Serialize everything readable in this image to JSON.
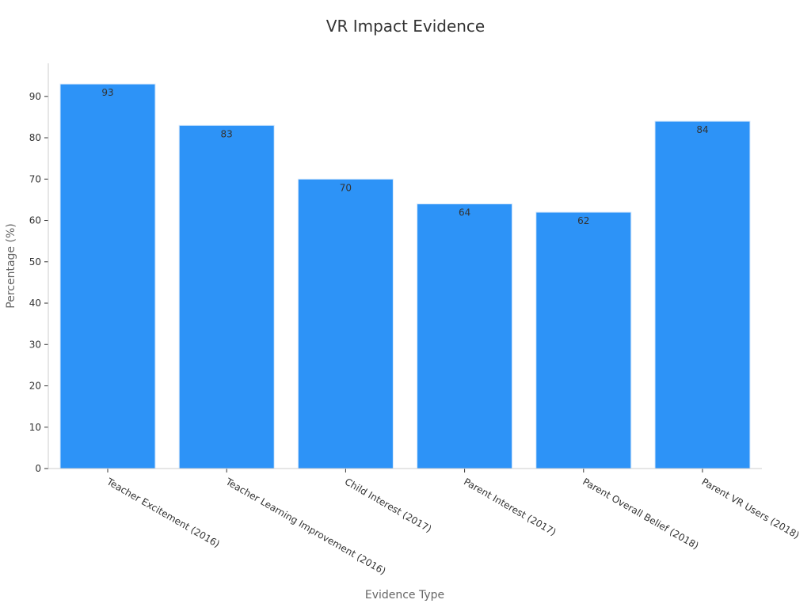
{
  "chart_data": {
    "type": "bar",
    "title": "VR Impact Evidence",
    "xlabel": "Evidence Type",
    "ylabel": "Percentage (%)",
    "ylim": [
      0,
      98
    ],
    "yticks": [
      0,
      10,
      20,
      30,
      40,
      50,
      60,
      70,
      80,
      90
    ],
    "categories": [
      "Teacher Excitement (2016)",
      "Teacher Learning Improvement (2016)",
      "Child Interest (2017)",
      "Parent Interest (2017)",
      "Parent Overall Belief (2018)",
      "Parent VR Users (2018)"
    ],
    "values": [
      93,
      83,
      70,
      64,
      62,
      84
    ],
    "bar_color": "#2d93f7",
    "grid": false,
    "legend": "none"
  }
}
